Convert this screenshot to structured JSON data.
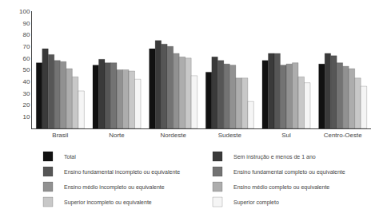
{
  "chart_data": {
    "type": "bar",
    "categories": [
      "Brasil",
      "Norte",
      "Nordeste",
      "Sudeste",
      "Sul",
      "Centro-Oeste"
    ],
    "series": [
      {
        "name": "Total",
        "color": "#111111",
        "values": [
          56,
          54,
          68,
          48,
          58,
          55
        ]
      },
      {
        "name": "Sem instrução e menos de 1 ano",
        "color": "#3a3a3a",
        "values": [
          68,
          59,
          75,
          61,
          64,
          64
        ]
      },
      {
        "name": "Ensino fundamental incompleto ou equivalente",
        "color": "#565656",
        "values": [
          63,
          56,
          72,
          58,
          64,
          62
        ]
      },
      {
        "name": "Ensino fundamental completo ou equivalente",
        "color": "#737373",
        "values": [
          58,
          56,
          70,
          55,
          54,
          56
        ]
      },
      {
        "name": "Ensino médio incompleto ou equivalente",
        "color": "#919191",
        "values": [
          57,
          50,
          64,
          54,
          55,
          53
        ]
      },
      {
        "name": "Ensino médio completo ou equivalente",
        "color": "#adadad",
        "values": [
          51,
          50,
          61,
          43,
          56,
          51
        ]
      },
      {
        "name": "Superior incompleto ou equivalente",
        "color": "#c8c8c8",
        "values": [
          44,
          49,
          60,
          43,
          44,
          43
        ]
      },
      {
        "name": "Superior completo",
        "color": "#f5f5f5",
        "values": [
          32,
          42,
          45,
          23,
          39,
          36
        ]
      }
    ],
    "ylim": [
      0,
      100
    ],
    "yticks": [
      10,
      20,
      30,
      40,
      50,
      60,
      70,
      80,
      90,
      100
    ],
    "grid": false,
    "legend": "bottom"
  }
}
